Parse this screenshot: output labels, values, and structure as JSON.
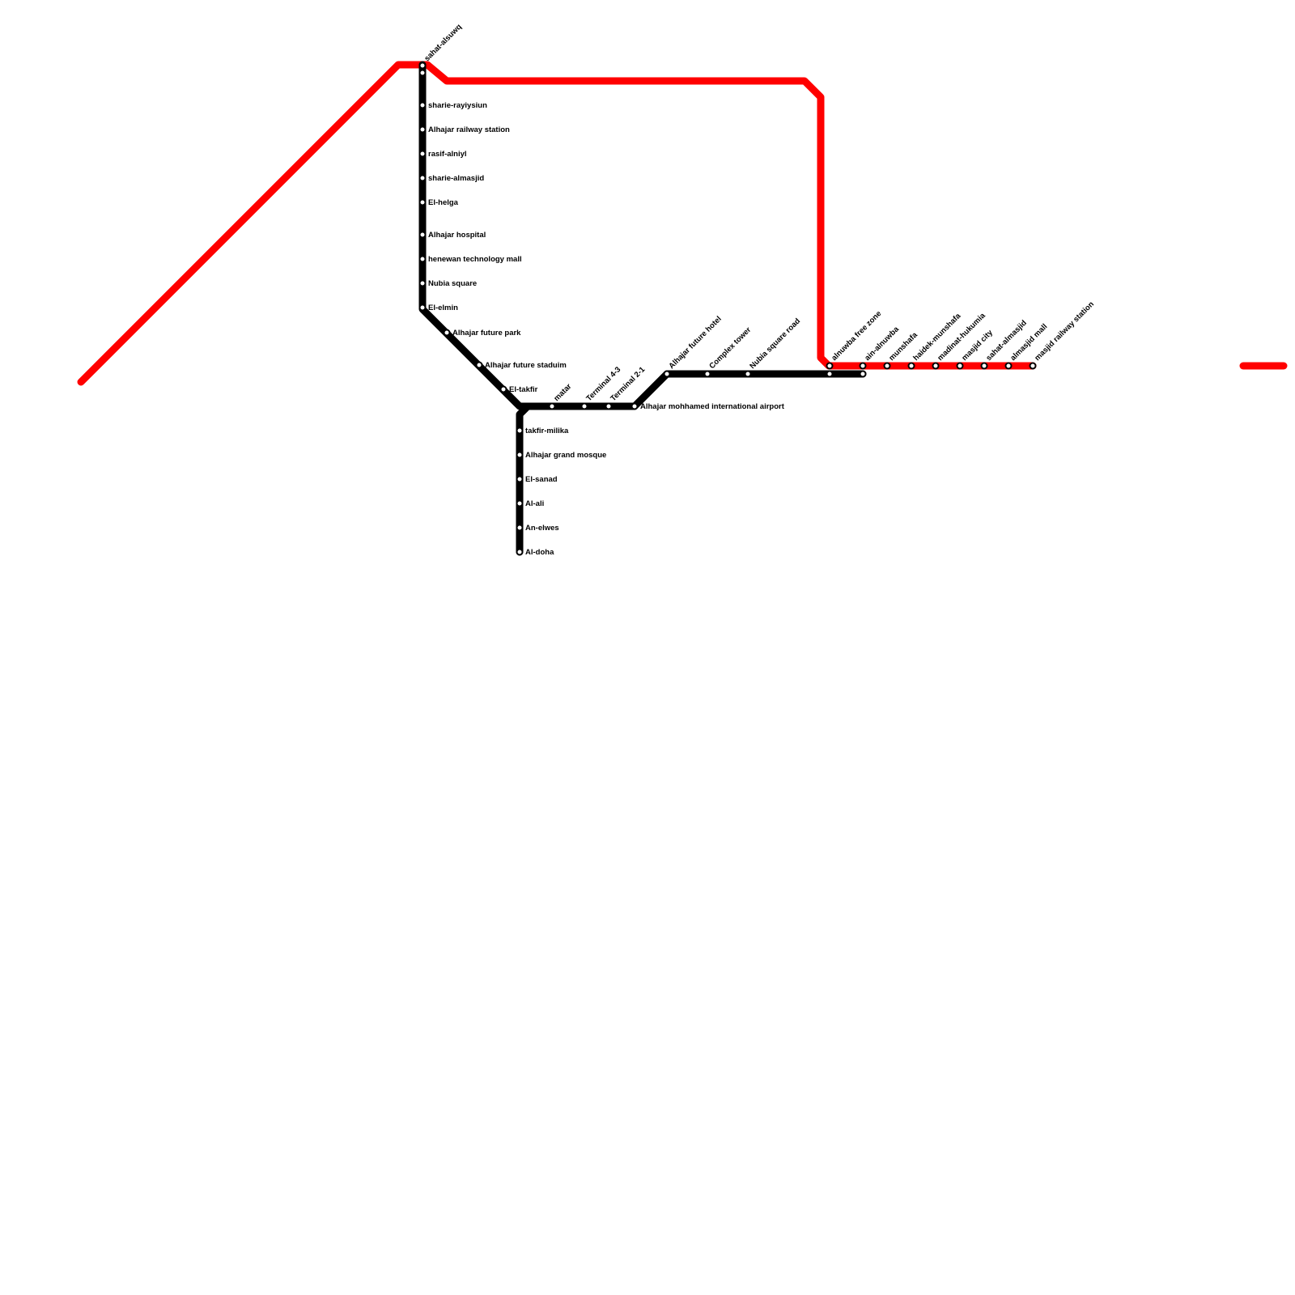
{
  "map": {
    "lines": [
      {
        "id": "red",
        "color": "#ff0000"
      },
      {
        "id": "black",
        "color": "#000000"
      }
    ],
    "stations": {
      "sahat_alsuwq": "sahat-alsuwq",
      "sharie_rayiysiun": "sharie-rayiysiun",
      "alhajar_railway_station": "Alhajar railway station",
      "rasif_alniyl": "rasif-alniyl",
      "sharie_almasjid": "sharie-almasjid",
      "el_helga": "El-helga",
      "alhajar_hospital": "Alhajar hospital",
      "henewan_technology_mall": "henewan technology mall",
      "nubia_square": "Nubia square",
      "el_elmin": "El-elmin",
      "alhajar_future_park": "Alhajar future park",
      "alhajar_future_staduim": "Alhajar future staduim",
      "el_takfir": "El-takfir",
      "matar": "matar",
      "terminal_4_3": "Terminal 4-3",
      "terminal_2_1": "Terminal 2-1",
      "alhajar_mohhamed_international_airport": "Alhajar mohhamed international airport",
      "takfir_milika": "takfir-milika",
      "alhajar_grand_mosque": "Alhajar grand mosque",
      "el_sanad": "El-sanad",
      "al_ali": "Al-ali",
      "an_elwes": "An-elwes",
      "al_doha": "Al-doha",
      "alhajar_future_hotel": "Alhajar future hotel",
      "complex_tower": "Complex tower",
      "nubia_square_road": "Nubia square road",
      "alnuwba_free_zone": "alnuwba free zone",
      "ain_alnuwba": "ain-alnuwba",
      "munshafa": "munshafa",
      "haidek_munshafa": "haidek-munshafa",
      "madinat_hukumia": "madinat-hukumia",
      "masjid_city": "masjid city",
      "sahat_almasjid": "sahat-almasjid",
      "almasjid_mall": "almasjid mall",
      "masjid_railway_station": "masjid railway station"
    }
  }
}
